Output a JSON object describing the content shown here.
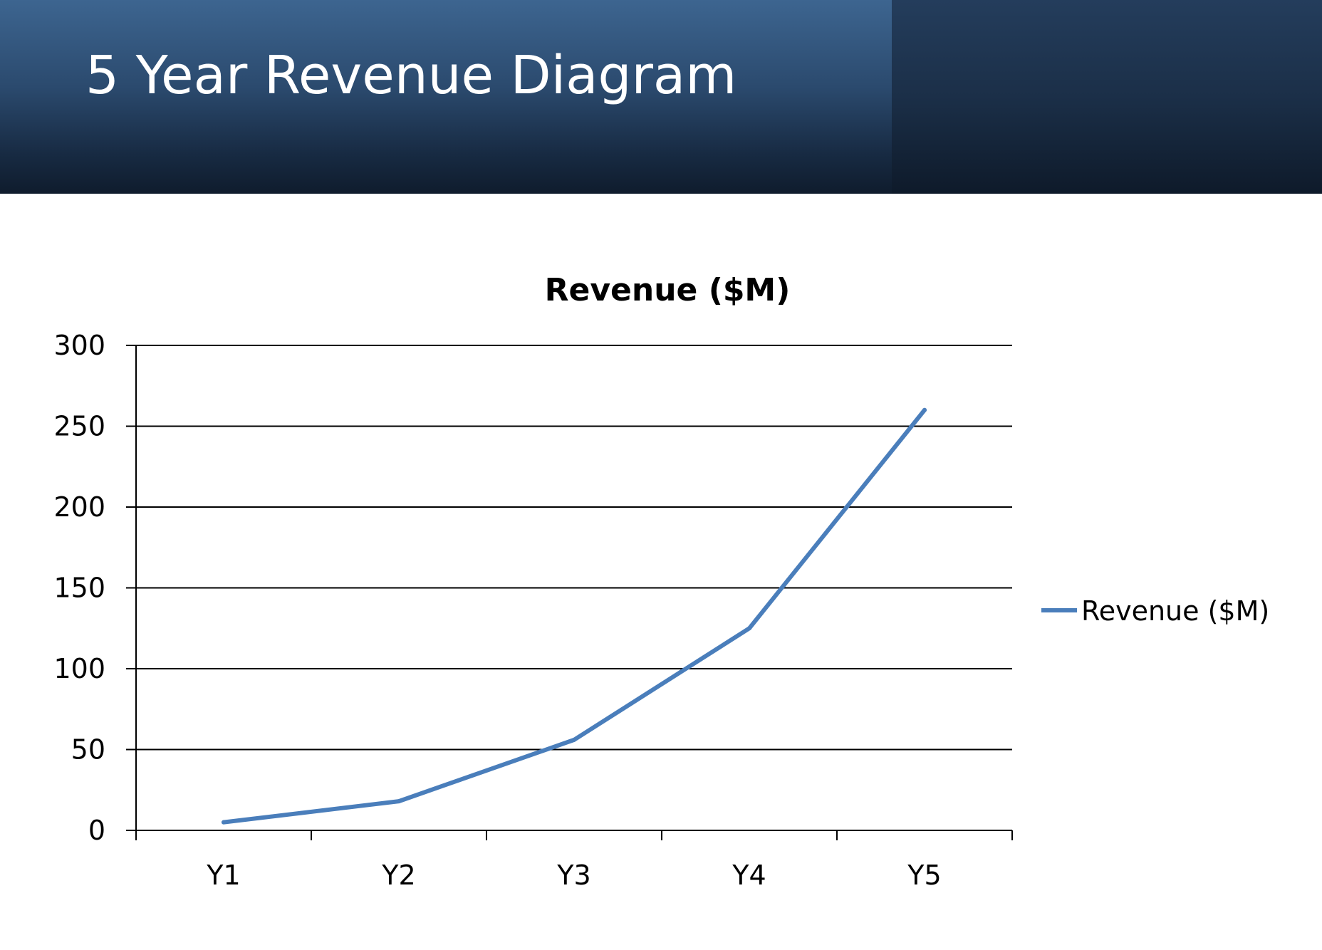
{
  "slide": {
    "title": "5 Year Revenue Diagram"
  },
  "chart_data": {
    "type": "line",
    "title": "Revenue ($M)",
    "xlabel": "",
    "ylabel": "",
    "categories": [
      "Y1",
      "Y2",
      "Y3",
      "Y4",
      "Y5"
    ],
    "series": [
      {
        "name": "Revenue ($M)",
        "values": [
          5,
          18,
          56,
          125,
          260
        ],
        "color": "#4a7ebb"
      }
    ],
    "ylim": [
      0,
      300
    ],
    "yticks": [
      0,
      50,
      100,
      150,
      200,
      250,
      300
    ],
    "grid": true,
    "legend": "right"
  }
}
